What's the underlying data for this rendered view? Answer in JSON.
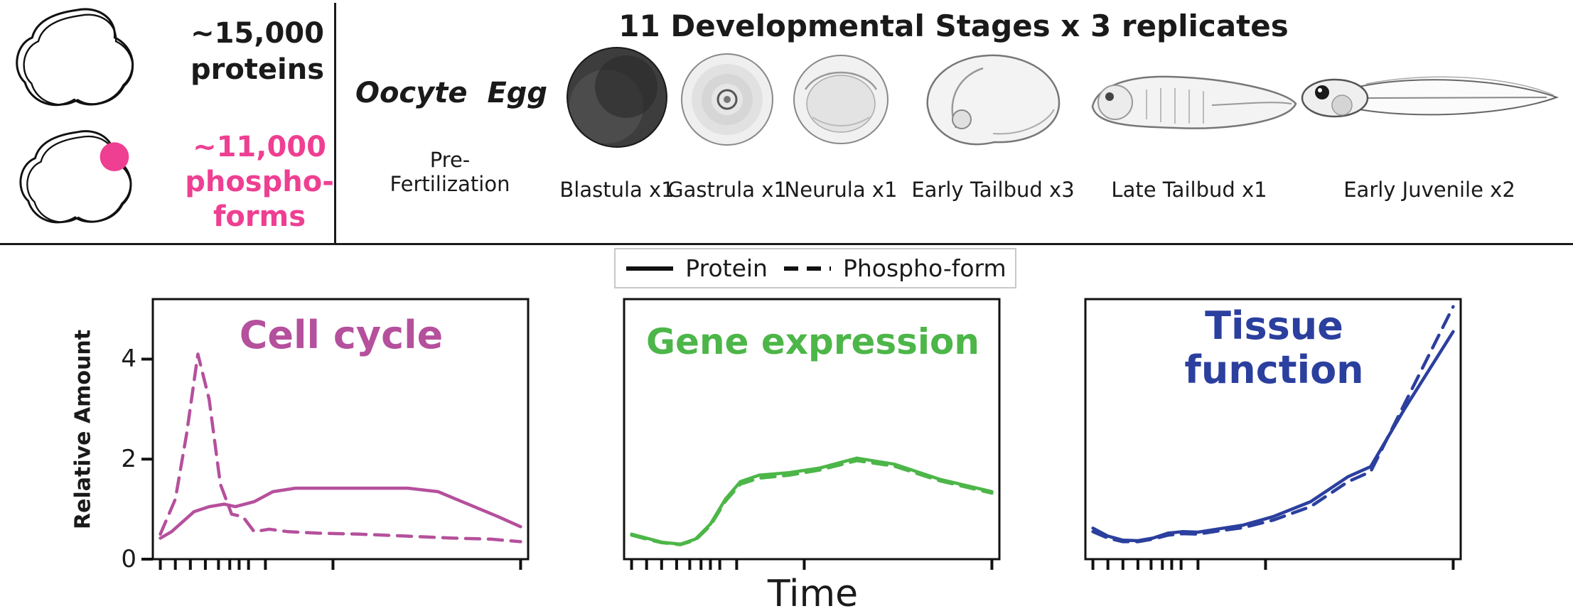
{
  "colors": {
    "pink": "#ee3f92"
  },
  "summary_panel": {
    "proteins_line1": "~15,000",
    "proteins_line2": "proteins",
    "phospho_line1": "~11,000",
    "phospho_line2": "phospho-",
    "phospho_line3": "forms"
  },
  "stages_panel": {
    "title": "11 Developmental Stages x 3 replicates",
    "pre_fertilization": {
      "oocyte_label": "Oocyte",
      "egg_label": "Egg",
      "stage_label": "Pre-Fertilization"
    },
    "stages": [
      {
        "name": "blastula",
        "label": "Blastula x1"
      },
      {
        "name": "gastrula",
        "label": "Gastrula x1"
      },
      {
        "name": "neurula",
        "label": "Neurula x1"
      },
      {
        "name": "early-tailbud",
        "label": "Early Tailbud x3"
      },
      {
        "name": "late-tailbud",
        "label": "Late Tailbud x1"
      },
      {
        "name": "early-juvenile",
        "label": "Early Juvenile x2"
      }
    ]
  },
  "legend": {
    "protein_label": "Protein",
    "phospho_label": "Phospho-form"
  },
  "axis": {
    "ylabel": "Relative Amount",
    "xlabel": "Time"
  },
  "chart_data": [
    {
      "type": "line",
      "title": "Cell cycle",
      "color": "#b5509c",
      "xlabel": "Time",
      "ylabel": "Relative Amount",
      "xlim": [
        0,
        10
      ],
      "ylim": [
        0,
        5.2
      ],
      "yticks": [
        0,
        2,
        4
      ],
      "show_ytick_labels": true,
      "xticks": [
        0.2,
        0.6,
        1.0,
        1.4,
        1.75,
        2.05,
        2.3,
        2.55,
        3.0,
        4.8,
        9.8
      ],
      "series": [
        {
          "name": "Protein",
          "dash": false,
          "points": [
            [
              0.2,
              0.42
            ],
            [
              0.5,
              0.55
            ],
            [
              0.8,
              0.75
            ],
            [
              1.1,
              0.95
            ],
            [
              1.5,
              1.05
            ],
            [
              1.9,
              1.1
            ],
            [
              2.2,
              1.05
            ],
            [
              2.7,
              1.15
            ],
            [
              3.2,
              1.35
            ],
            [
              3.8,
              1.42
            ],
            [
              5.5,
              1.42
            ],
            [
              6.8,
              1.42
            ],
            [
              7.6,
              1.35
            ],
            [
              8.4,
              1.1
            ],
            [
              9.2,
              0.85
            ],
            [
              9.8,
              0.65
            ]
          ]
        },
        {
          "name": "Phospho-form",
          "dash": true,
          "points": [
            [
              0.2,
              0.5
            ],
            [
              0.6,
              1.2
            ],
            [
              0.9,
              2.5
            ],
            [
              1.2,
              4.1
            ],
            [
              1.5,
              3.2
            ],
            [
              1.8,
              1.5
            ],
            [
              2.1,
              0.9
            ],
            [
              2.4,
              0.85
            ],
            [
              2.7,
              0.55
            ],
            [
              3.1,
              0.6
            ],
            [
              3.6,
              0.55
            ],
            [
              4.4,
              0.52
            ],
            [
              5.5,
              0.5
            ],
            [
              6.8,
              0.46
            ],
            [
              8.0,
              0.42
            ],
            [
              9.0,
              0.4
            ],
            [
              9.8,
              0.35
            ]
          ]
        }
      ]
    },
    {
      "type": "line",
      "title": "Gene expression",
      "color": "#4cb648",
      "xlabel": "Time",
      "ylabel": "Relative Amount",
      "xlim": [
        0,
        10
      ],
      "ylim": [
        0,
        5.2
      ],
      "yticks": [
        0,
        2,
        4
      ],
      "show_ytick_labels": false,
      "xticks": [
        0.2,
        0.6,
        1.0,
        1.4,
        1.75,
        2.05,
        2.3,
        2.55,
        3.0,
        4.8,
        9.8
      ],
      "series": [
        {
          "name": "Protein",
          "dash": false,
          "points": [
            [
              0.2,
              0.5
            ],
            [
              0.6,
              0.42
            ],
            [
              1.0,
              0.34
            ],
            [
              1.5,
              0.3
            ],
            [
              1.9,
              0.4
            ],
            [
              2.3,
              0.7
            ],
            [
              2.7,
              1.2
            ],
            [
              3.1,
              1.55
            ],
            [
              3.6,
              1.68
            ],
            [
              4.4,
              1.73
            ],
            [
              5.2,
              1.82
            ],
            [
              6.2,
              2.02
            ],
            [
              7.2,
              1.9
            ],
            [
              8.4,
              1.6
            ],
            [
              9.8,
              1.35
            ]
          ]
        },
        {
          "name": "Phospho-form",
          "dash": true,
          "points": [
            [
              0.2,
              0.48
            ],
            [
              0.6,
              0.4
            ],
            [
              1.0,
              0.33
            ],
            [
              1.5,
              0.29
            ],
            [
              1.9,
              0.38
            ],
            [
              2.3,
              0.67
            ],
            [
              2.7,
              1.16
            ],
            [
              3.1,
              1.5
            ],
            [
              3.6,
              1.62
            ],
            [
              4.4,
              1.68
            ],
            [
              5.2,
              1.78
            ],
            [
              6.2,
              1.97
            ],
            [
              7.2,
              1.86
            ],
            [
              8.4,
              1.57
            ],
            [
              9.8,
              1.32
            ]
          ]
        }
      ]
    },
    {
      "type": "line",
      "title": "Tissue function",
      "color": "#2b3f9e",
      "xlabel": "Time",
      "ylabel": "Relative Amount",
      "xlim": [
        0,
        10
      ],
      "ylim": [
        0,
        5.2
      ],
      "yticks": [
        0,
        2,
        4
      ],
      "show_ytick_labels": false,
      "xticks": [
        0.2,
        0.6,
        1.0,
        1.4,
        1.75,
        2.05,
        2.3,
        2.55,
        3.0,
        4.8,
        9.8
      ],
      "series": [
        {
          "name": "Protein",
          "dash": false,
          "points": [
            [
              0.2,
              0.62
            ],
            [
              0.6,
              0.46
            ],
            [
              1.0,
              0.38
            ],
            [
              1.4,
              0.37
            ],
            [
              1.8,
              0.42
            ],
            [
              2.2,
              0.52
            ],
            [
              2.6,
              0.55
            ],
            [
              3.0,
              0.54
            ],
            [
              3.5,
              0.6
            ],
            [
              4.2,
              0.68
            ],
            [
              5.0,
              0.85
            ],
            [
              6.0,
              1.15
            ],
            [
              7.0,
              1.65
            ],
            [
              7.6,
              1.85
            ],
            [
              8.5,
              3.0
            ],
            [
              9.8,
              4.55
            ]
          ]
        },
        {
          "name": "Phospho-form",
          "dash": true,
          "points": [
            [
              0.2,
              0.55
            ],
            [
              0.6,
              0.42
            ],
            [
              1.0,
              0.35
            ],
            [
              1.4,
              0.35
            ],
            [
              1.8,
              0.4
            ],
            [
              2.2,
              0.48
            ],
            [
              2.6,
              0.51
            ],
            [
              3.0,
              0.5
            ],
            [
              3.5,
              0.56
            ],
            [
              4.2,
              0.63
            ],
            [
              5.0,
              0.78
            ],
            [
              6.0,
              1.05
            ],
            [
              7.0,
              1.55
            ],
            [
              7.6,
              1.75
            ],
            [
              8.5,
              3.1
            ],
            [
              9.8,
              5.05
            ]
          ]
        }
      ]
    }
  ]
}
